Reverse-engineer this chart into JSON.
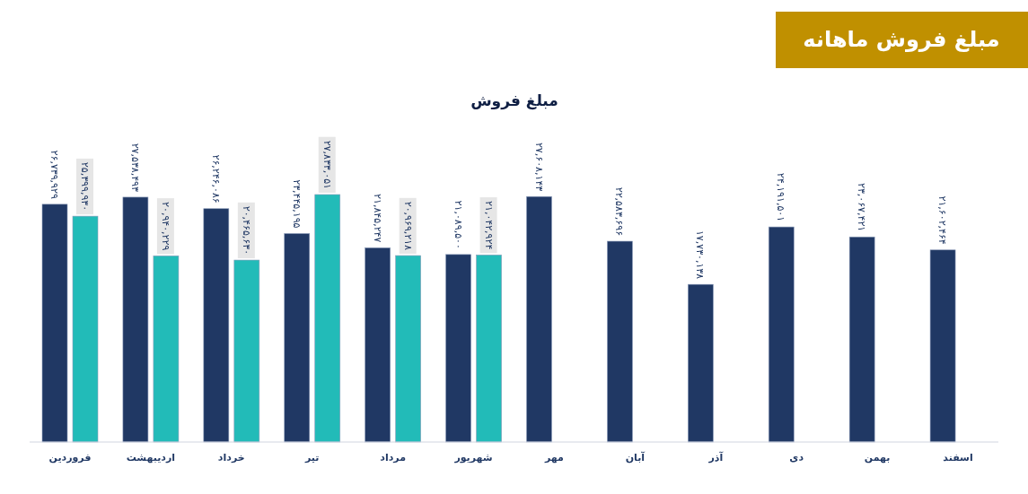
{
  "chart_data": {
    "type": "bar",
    "title": "مبلغ فروش ماهانه",
    "subtitle": "مبلغ فروش",
    "categories": [
      "فروردین",
      "اردیبهشت",
      "خرداد",
      "تیر",
      "مرداد",
      "شهریور",
      "مهر",
      "آبان",
      "آذر",
      "دی",
      "بهمن",
      "اسفند"
    ],
    "series": [
      {
        "color": "#203864",
        "values": [
          26739929,
          27538493,
          26246086,
          23445195,
          21845247,
          21089500,
          27608143,
          22583696,
          17730138,
          24191501,
          23067421,
          21602464
        ],
        "value_labels": [
          "۲۶,۷۳۹,۹۲۹",
          "۲۷,۵۳۸,۴۹۳",
          "۲۶,۲۴۶,۰۸۶",
          "۲۳,۴۴۵,۱۹۵",
          "۲۱,۸۴۵,۲۴۷",
          "۲۱,۰۸۹,۵۰۰",
          "۲۷,۶۰۸,۱۴۳",
          "۲۲,۵۸۳,۶۹۶",
          "۱۷,۷۳۰,۱۳۸",
          "۲۴,۱۹۱,۵۰۱",
          "۲۳,۰۶۷,۴۲۱",
          "۲۱,۶۰۲,۴۶۴"
        ]
      },
      {
        "color": "#22bbb8",
        "values": [
          25399930,
          20940229,
          20465630,
          27833051,
          20969218,
          21042924,
          null,
          null,
          null,
          null,
          null,
          null
        ],
        "value_labels": [
          "۲۵,۳۹۹,۹۳۰",
          "۲۰,۹۴۰,۲۲۹",
          "۲۰,۴۶۵,۶۳۰",
          "۲۷,۸۳۳,۰۵۱",
          "۲۰,۹۶۹,۲۱۸",
          "۲۱,۰۴۲,۹۲۴",
          null,
          null,
          null,
          null,
          null,
          null
        ]
      }
    ]
  }
}
